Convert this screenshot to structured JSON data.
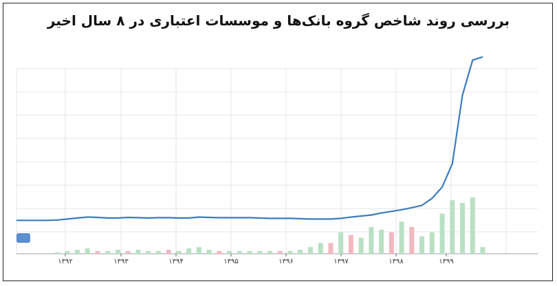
{
  "chart_data": {
    "type": "line",
    "title": "بررسی روند شاخص گروه بانک‌ها و موسسات اعتباری در ۸ سال اخیر",
    "xlabel": "",
    "ylabel": "",
    "x_ticks": [
      "۱۳۹۲",
      "۱۳۹۳",
      "۱۳۹۴",
      "۱۳۹۵",
      "۱۳۹۶",
      "۱۳۹۷",
      "۱۳۹۸",
      "۱۳۹۹"
    ],
    "grid": true,
    "legend": "none",
    "colors": {
      "line": "#3a7bbf",
      "volume_up": "#b9e0c3",
      "volume_down": "#f2b8c0",
      "grid": "#e3e6ea"
    },
    "series": [
      {
        "values": [
          1.0,
          1.0,
          1.0,
          1.0,
          1.01,
          1.04,
          1.07,
          1.1,
          1.09,
          1.07,
          1.07,
          1.09,
          1.08,
          1.07,
          1.08,
          1.08,
          1.07,
          1.07,
          1.1,
          1.09,
          1.08,
          1.08,
          1.08,
          1.08,
          1.07,
          1.06,
          1.06,
          1.06,
          1.05,
          1.04,
          1.04,
          1.04,
          1.06,
          1.1,
          1.13,
          1.16,
          1.22,
          1.27,
          1.32,
          1.38,
          1.45,
          1.66,
          2.0,
          2.7,
          4.75,
          5.8,
          5.9
        ]
      }
    ],
    "volume": [
      0.0,
      0.0,
      0.0,
      0.0,
      0.01,
      0.02,
      0.03,
      0.04,
      0.02,
      0.02,
      0.03,
      0.02,
      0.03,
      0.02,
      0.02,
      0.03,
      0.02,
      0.04,
      0.05,
      0.03,
      0.02,
      0.02,
      0.02,
      0.02,
      0.02,
      0.02,
      0.02,
      0.02,
      0.03,
      0.05,
      0.08,
      0.08,
      0.16,
      0.14,
      0.12,
      0.2,
      0.18,
      0.16,
      0.24,
      0.2,
      0.13,
      0.16,
      0.3,
      0.4,
      0.38,
      0.42,
      0.05
    ],
    "volume_down_flags": [
      false,
      false,
      false,
      false,
      false,
      false,
      false,
      false,
      true,
      false,
      false,
      true,
      false,
      false,
      false,
      true,
      false,
      false,
      false,
      false,
      true,
      false,
      false,
      false,
      false,
      false,
      true,
      false,
      false,
      false,
      false,
      true,
      false,
      true,
      false,
      false,
      false,
      true,
      false,
      true,
      false,
      false,
      false,
      false,
      false,
      false,
      false
    ]
  }
}
